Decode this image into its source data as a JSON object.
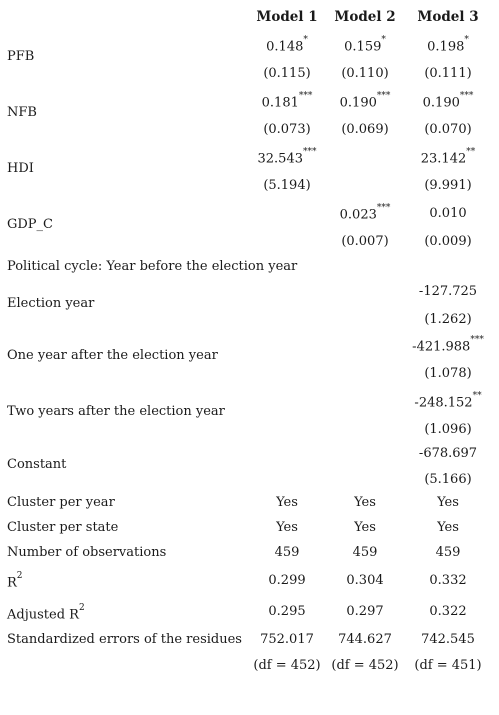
{
  "columns": [
    "Model 1",
    "Model 2",
    "Model 3"
  ],
  "rows": [
    {
      "label": "PFB",
      "coef": [
        "0.148",
        "0.159",
        "0.198"
      ],
      "stars": [
        "*",
        "*",
        "*"
      ],
      "se": [
        "(0.115)",
        "(0.110)",
        "(0.111)"
      ]
    },
    {
      "label": "NFB",
      "coef": [
        "0.181",
        "0.190",
        "0.190"
      ],
      "stars": [
        "***",
        "***",
        "***"
      ],
      "se": [
        "(0.073)",
        "(0.069)",
        "(0.070)"
      ]
    },
    {
      "label": "HDI",
      "coef": [
        "32.543",
        "",
        "23.142"
      ],
      "stars": [
        "***",
        "",
        "**"
      ],
      "se": [
        "(5.194)",
        "",
        "(9.991)"
      ]
    },
    {
      "label": "GDP_C",
      "coef": [
        "",
        "0.023",
        "0.010"
      ],
      "stars": [
        "",
        "***",
        ""
      ],
      "se": [
        "",
        "(0.007)",
        "(0.009)"
      ]
    },
    {
      "label": "Political cycle: Year before the election year"
    },
    {
      "label": "Election year",
      "coef": [
        "",
        "",
        "-127.725"
      ],
      "stars": [
        "",
        "",
        ""
      ],
      "se": [
        "",
        "",
        "(1.262)"
      ]
    },
    {
      "label": "One year after the election year",
      "coef": [
        "",
        "",
        "-421.988"
      ],
      "stars": [
        "",
        "",
        "***"
      ],
      "se": [
        "",
        "",
        "(1.078)"
      ]
    },
    {
      "label": "Two years after the election year",
      "coef": [
        "",
        "",
        "-248.152"
      ],
      "stars": [
        "",
        "",
        "**"
      ],
      "se": [
        "",
        "",
        "(1.096)"
      ]
    },
    {
      "label": "Constant",
      "coef": [
        "",
        "",
        "-678.697"
      ],
      "stars": [
        "",
        "",
        ""
      ],
      "se": [
        "",
        "",
        "(5.166)"
      ]
    }
  ],
  "footer": [
    {
      "label": "Cluster per year",
      "values": [
        "Yes",
        "Yes",
        "Yes"
      ]
    },
    {
      "label": "Cluster per state",
      "values": [
        "Yes",
        "Yes",
        "Yes"
      ]
    },
    {
      "label": "Number of observations",
      "values": [
        "459",
        "459",
        "459"
      ]
    },
    {
      "label": "R",
      "sup": "2",
      "values": [
        "0.299",
        "0.304",
        "0.332"
      ]
    },
    {
      "label": "Adjusted R",
      "sup": "2",
      "values": [
        "0.295",
        "0.297",
        "0.322"
      ]
    },
    {
      "label": "Standardized errors of the residues",
      "values": [
        "752.017",
        "744.627",
        "742.545"
      ],
      "sub_values": [
        "(df = 452)",
        "(df = 452)",
        "(df = 451)"
      ]
    }
  ]
}
